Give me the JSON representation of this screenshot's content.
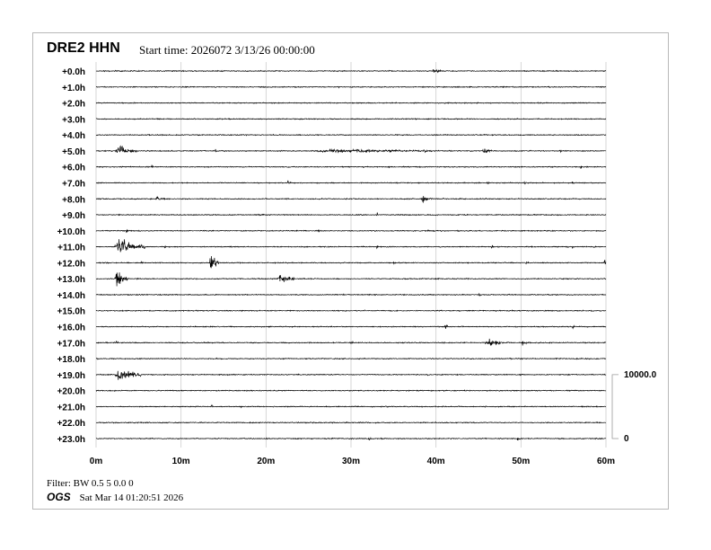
{
  "header": {
    "station": "DRE2 HHN",
    "start_time": "Start time: 2026072  3/13/26 00:00:00"
  },
  "footer": {
    "filter": "Filter: BW 0.5 5 0.0 0",
    "agency": "OGS",
    "timestamp": "Sat Mar 14 01:20:51 2026"
  },
  "chart_data": {
    "type": "line",
    "title": "DRE2 HHN",
    "x_ticks": [
      "0m",
      "10m",
      "20m",
      "30m",
      "40m",
      "50m",
      "60m"
    ],
    "xlim": [
      0,
      60
    ],
    "row_labels": [
      "+0.0h",
      "+1.0h",
      "+2.0h",
      "+3.0h",
      "+4.0h",
      "+5.0h",
      "+6.0h",
      "+7.0h",
      "+8.0h",
      "+9.0h",
      "+10.0h",
      "+11.0h",
      "+12.0h",
      "+13.0h",
      "+14.0h",
      "+15.0h",
      "+16.0h",
      "+17.0h",
      "+18.0h",
      "+19.0h",
      "+20.0h",
      "+21.0h",
      "+22.0h",
      "+23.0h"
    ],
    "scale": {
      "top": "10000.0",
      "bottom": "0",
      "counts": 10000,
      "rows_spanned": 4
    },
    "grid": true,
    "trace_color": "#000000",
    "grid_color": "#cccccc",
    "events_note_units": "minute, duration_min, amplitude_counts",
    "events": [
      [
        [
          39.5,
          1.5,
          500
        ]
      ],
      [
        [
          28.5,
          0.3,
          250
        ]
      ],
      [
        [
          29,
          0.2,
          200
        ]
      ],
      [],
      [],
      [
        [
          2.3,
          2.5,
          1200
        ],
        [
          14,
          0.3,
          400
        ],
        [
          24.5,
          21,
          350
        ],
        [
          38.5,
          0.5,
          500
        ],
        [
          45.5,
          1,
          900
        ],
        [
          54.5,
          0.4,
          450
        ]
      ],
      [
        [
          6.5,
          0.3,
          400
        ],
        [
          57,
          0.3,
          300
        ]
      ],
      [
        [
          22.5,
          0.4,
          600
        ],
        [
          46,
          0.3,
          400
        ],
        [
          50.3,
          0.3,
          500
        ],
        [
          52.5,
          0.3,
          400
        ],
        [
          56,
          0.3,
          450
        ]
      ],
      [
        [
          7,
          1,
          500
        ],
        [
          38.3,
          1.2,
          800
        ],
        [
          40.8,
          0.3,
          400
        ]
      ],
      [
        [
          33,
          0.3,
          500
        ]
      ],
      [
        [
          3.5,
          0.5,
          400
        ],
        [
          26,
          1,
          250
        ],
        [
          39,
          0.3,
          300
        ]
      ],
      [
        [
          2.2,
          3.5,
          1500
        ],
        [
          8,
          0.3,
          400
        ],
        [
          33,
          0.4,
          600
        ],
        [
          46.5,
          0.3,
          500
        ],
        [
          56,
          0.3,
          400
        ]
      ],
      [
        [
          5.2,
          0.3,
          500
        ],
        [
          13.3,
          1.1,
          2400
        ],
        [
          35,
          0.2,
          400
        ],
        [
          50.5,
          0.4,
          600
        ],
        [
          59.8,
          0.3,
          2400
        ]
      ],
      [
        [
          2.2,
          1.5,
          2000
        ],
        [
          21.3,
          2,
          1100
        ]
      ],
      [
        [
          45,
          0.4,
          500
        ]
      ],
      [
        [
          31.5,
          0.3,
          450
        ]
      ],
      [
        [
          41,
          0.4,
          600
        ],
        [
          56,
          0.4,
          500
        ]
      ],
      [
        [
          2.3,
          0.5,
          500
        ],
        [
          30,
          0.3,
          800
        ],
        [
          45.8,
          3,
          700
        ],
        [
          50,
          1.2,
          500
        ],
        [
          55.5,
          0.2,
          600
        ]
      ],
      [
        [
          58,
          0.4,
          400
        ]
      ],
      [
        [
          2.3,
          3,
          1400
        ],
        [
          39,
          0.2,
          300
        ],
        [
          55.5,
          0.3,
          300
        ]
      ],
      [],
      [
        [
          13.5,
          0.4,
          450
        ],
        [
          17,
          0.2,
          250
        ]
      ],
      [
        [
          4.5,
          0.2,
          250
        ]
      ],
      [
        [
          32,
          0.4,
          600
        ],
        [
          33.5,
          0.4,
          300
        ],
        [
          49.5,
          0.5,
          700
        ]
      ]
    ]
  }
}
